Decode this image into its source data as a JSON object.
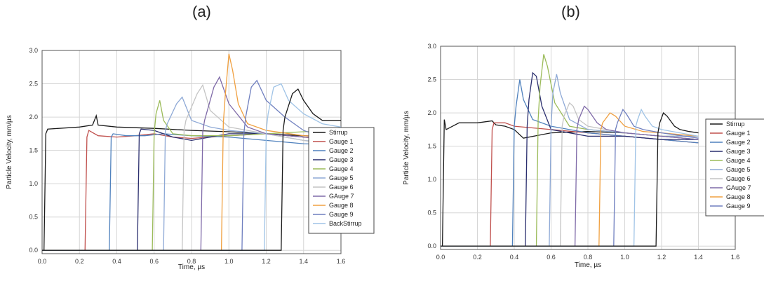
{
  "panels": [
    {
      "label": "(a)"
    },
    {
      "label": "(b)"
    }
  ],
  "colors": {
    "grid": "#d6d6d6",
    "frame": "#555555",
    "series": [
      "#1a1a1a",
      "#c0504d",
      "#4f81bd",
      "#2a2e6e",
      "#9bbb59",
      "#8ea9d6",
      "#c4c4c4",
      "#7f6aa8",
      "#f0a040",
      "#6f7fbf",
      "#9fc3e6"
    ]
  },
  "chart_data": [
    {
      "type": "line",
      "title": "",
      "xlabel": "Time, µs",
      "ylabel": "Particle Velocity, mm/µs",
      "xlim": [
        0.0,
        1.6
      ],
      "ylim": [
        -0.05,
        3.0
      ],
      "xticks": [
        "0.0",
        "0.2",
        "0.4",
        "0.6",
        "0.8",
        "1.0",
        "1.2",
        "1.4",
        "1.6"
      ],
      "yticks": [
        "0.0",
        "0.5",
        "1.0",
        "1.5",
        "2.0",
        "2.5",
        "3.0"
      ],
      "grid": true,
      "legend_position": "right",
      "series": [
        {
          "name": "Stirrup",
          "x": [
            0,
            0.01,
            0.02,
            0.03,
            0.2,
            0.27,
            0.29,
            0.3,
            0.4,
            0.6,
            0.8,
            1.0,
            1.2,
            1.4,
            1.6
          ],
          "y": [
            0.0,
            0.0,
            1.75,
            1.82,
            1.85,
            1.88,
            2.02,
            1.88,
            1.85,
            1.83,
            1.8,
            1.78,
            1.75,
            1.72,
            1.7
          ]
        },
        {
          "name": "Gauge 1",
          "x": [
            0,
            0.23,
            0.24,
            0.25,
            0.3,
            0.4,
            0.5,
            0.6,
            0.7,
            0.8,
            1.0,
            1.2,
            1.4,
            1.6
          ],
          "y": [
            0.0,
            0.0,
            1.7,
            1.8,
            1.72,
            1.7,
            1.72,
            1.75,
            1.7,
            1.68,
            1.72,
            1.75,
            1.7,
            1.65
          ]
        },
        {
          "name": "Gauge 2",
          "x": [
            0,
            0.36,
            0.37,
            0.38,
            0.45,
            0.55,
            0.65,
            0.8,
            1.0,
            1.2,
            1.4,
            1.6
          ],
          "y": [
            0.0,
            0.0,
            1.7,
            1.75,
            1.72,
            1.72,
            1.75,
            1.72,
            1.7,
            1.65,
            1.6,
            1.58
          ]
        },
        {
          "name": "Gauge 3",
          "x": [
            0,
            0.51,
            0.52,
            0.53,
            0.6,
            0.7,
            0.8,
            0.9,
            1.0,
            1.2,
            1.4,
            1.6
          ],
          "y": [
            0.0,
            0.0,
            1.75,
            1.82,
            1.8,
            1.7,
            1.65,
            1.7,
            1.75,
            1.75,
            1.7,
            1.7
          ]
        },
        {
          "name": "Gauge 4",
          "x": [
            0,
            0.59,
            0.6,
            0.61,
            0.63,
            0.65,
            0.7,
            0.8,
            1.0,
            1.2,
            1.4,
            1.6
          ],
          "y": [
            0.0,
            0.0,
            1.75,
            2.05,
            2.25,
            1.95,
            1.75,
            1.72,
            1.72,
            1.75,
            1.78,
            1.8
          ]
        },
        {
          "name": "Gauge 5",
          "x": [
            0,
            0.65,
            0.66,
            0.67,
            0.72,
            0.75,
            0.8,
            0.9,
            1.0,
            1.2,
            1.4,
            1.6
          ],
          "y": [
            0.0,
            0.0,
            1.8,
            1.9,
            2.2,
            2.3,
            1.95,
            1.85,
            1.8,
            1.75,
            1.65,
            1.6
          ]
        },
        {
          "name": "Gauge 6",
          "x": [
            0,
            0.75,
            0.76,
            0.77,
            0.83,
            0.86,
            0.9,
            1.0,
            1.2,
            1.4,
            1.6
          ],
          "y": [
            0.0,
            0.0,
            1.8,
            1.95,
            2.35,
            2.48,
            2.1,
            1.85,
            1.75,
            1.65,
            1.55
          ]
        },
        {
          "name": "GAuge 7",
          "x": [
            0,
            0.85,
            0.86,
            0.87,
            0.92,
            0.95,
            1.0,
            1.1,
            1.2,
            1.4,
            1.6
          ],
          "y": [
            0.0,
            0.0,
            1.78,
            1.95,
            2.45,
            2.6,
            2.2,
            1.85,
            1.75,
            1.7,
            1.7
          ]
        },
        {
          "name": "Gauge 8",
          "x": [
            0,
            0.96,
            0.97,
            0.98,
            1.0,
            1.02,
            1.05,
            1.1,
            1.2,
            1.4,
            1.6
          ],
          "y": [
            0.0,
            0.0,
            1.9,
            2.3,
            2.95,
            2.7,
            2.2,
            1.9,
            1.8,
            1.72,
            1.7
          ]
        },
        {
          "name": "Gauge 9",
          "x": [
            0,
            1.07,
            1.08,
            1.09,
            1.12,
            1.15,
            1.2,
            1.3,
            1.4,
            1.5,
            1.6
          ],
          "y": [
            0.0,
            0.0,
            1.75,
            2.0,
            2.45,
            2.55,
            2.25,
            2.0,
            1.8,
            1.7,
            1.65
          ]
        },
        {
          "name": "BackStirrup",
          "x": [
            0,
            1.19,
            1.2,
            1.21,
            1.24,
            1.28,
            1.32,
            1.4,
            1.5,
            1.6
          ],
          "y": [
            0.0,
            0.0,
            1.8,
            2.05,
            2.45,
            2.5,
            2.25,
            2.05,
            1.9,
            1.85
          ]
        },
        {
          "name": "",
          "x": [
            0,
            1.28,
            1.29,
            1.3,
            1.34,
            1.37,
            1.4,
            1.45,
            1.5,
            1.6
          ],
          "y": [
            0.0,
            0.0,
            1.8,
            2.0,
            2.35,
            2.42,
            2.25,
            2.05,
            1.95,
            1.95
          ]
        }
      ]
    },
    {
      "type": "line",
      "title": "",
      "xlabel": "Time, µs",
      "ylabel": "Particle Velocity, mm/µs",
      "xlim": [
        0.0,
        1.6
      ],
      "ylim": [
        -0.05,
        3.0
      ],
      "xticks": [
        "0.0",
        "0.2",
        "0.4",
        "0.6",
        "0.8",
        "1.0",
        "1.2",
        "1.4",
        "1.6"
      ],
      "yticks": [
        "0.0",
        "0.5",
        "1.0",
        "1.5",
        "2.0",
        "2.5",
        "3.0"
      ],
      "grid": true,
      "legend_position": "right",
      "series": [
        {
          "name": "Stirrup",
          "x": [
            0,
            0.01,
            0.02,
            0.03,
            0.1,
            0.2,
            0.28,
            0.3,
            0.35,
            0.4,
            0.45,
            0.6,
            0.8,
            1.0,
            1.2,
            1.4
          ],
          "y": [
            0.0,
            0.0,
            1.9,
            1.75,
            1.85,
            1.85,
            1.88,
            1.82,
            1.8,
            1.75,
            1.62,
            1.7,
            1.72,
            1.7,
            1.65,
            1.6
          ]
        },
        {
          "name": "Gauge 1",
          "x": [
            0,
            0.27,
            0.28,
            0.29,
            0.35,
            0.4,
            0.6,
            0.8,
            1.0,
            1.2,
            1.4
          ],
          "y": [
            0.0,
            0.0,
            1.75,
            1.85,
            1.85,
            1.8,
            1.75,
            1.7,
            1.65,
            1.6,
            1.55
          ]
        },
        {
          "name": "Gauge 2",
          "x": [
            0,
            0.39,
            0.4,
            0.41,
            0.43,
            0.45,
            0.5,
            0.6,
            0.8,
            1.0,
            1.2,
            1.4
          ],
          "y": [
            0.0,
            0.0,
            1.8,
            2.1,
            2.5,
            2.2,
            1.9,
            1.8,
            1.7,
            1.65,
            1.6,
            1.55
          ]
        },
        {
          "name": "Gauge 3",
          "x": [
            0,
            0.46,
            0.47,
            0.48,
            0.5,
            0.52,
            0.55,
            0.6,
            0.8,
            1.0,
            1.2,
            1.4
          ],
          "y": [
            0.0,
            0.0,
            1.8,
            2.2,
            2.6,
            2.55,
            2.1,
            1.75,
            1.65,
            1.65,
            1.6,
            1.6
          ]
        },
        {
          "name": "Gauge 4",
          "x": [
            0,
            0.52,
            0.53,
            0.54,
            0.56,
            0.58,
            0.62,
            0.7,
            0.8,
            1.0,
            1.2,
            1.4
          ],
          "y": [
            0.0,
            0.0,
            1.9,
            2.4,
            2.88,
            2.7,
            2.15,
            1.8,
            1.75,
            1.7,
            1.65,
            1.65
          ]
        },
        {
          "name": "Gauge 5",
          "x": [
            0,
            0.59,
            0.6,
            0.61,
            0.63,
            0.65,
            0.7,
            0.8,
            1.0,
            1.2,
            1.4
          ],
          "y": [
            0.0,
            0.0,
            1.8,
            2.3,
            2.58,
            2.3,
            1.9,
            1.75,
            1.7,
            1.65,
            1.65
          ]
        },
        {
          "name": "Gauge 6",
          "x": [
            0,
            0.65,
            0.66,
            0.67,
            0.7,
            0.72,
            0.75,
            0.8,
            1.0,
            1.2,
            1.4
          ],
          "y": [
            0.0,
            0.0,
            1.8,
            1.95,
            2.15,
            2.1,
            1.9,
            1.8,
            1.7,
            1.65,
            1.6
          ]
        },
        {
          "name": "GAuge 7",
          "x": [
            0,
            0.73,
            0.74,
            0.75,
            0.78,
            0.8,
            0.85,
            0.9,
            1.0,
            1.2,
            1.4
          ],
          "y": [
            0.0,
            0.0,
            1.75,
            1.9,
            2.1,
            2.05,
            1.85,
            1.75,
            1.7,
            1.65,
            1.6
          ]
        },
        {
          "name": "Gauge 8",
          "x": [
            0,
            0.86,
            0.87,
            0.88,
            0.92,
            0.95,
            1.0,
            1.1,
            1.2,
            1.4
          ],
          "y": [
            0.0,
            0.0,
            1.75,
            1.85,
            2.0,
            1.95,
            1.8,
            1.72,
            1.7,
            1.65
          ]
        },
        {
          "name": "Gauge 9",
          "x": [
            0,
            0.94,
            0.95,
            0.96,
            0.99,
            1.01,
            1.05,
            1.1,
            1.2,
            1.4
          ],
          "y": [
            0.0,
            0.0,
            1.75,
            1.85,
            2.05,
            1.98,
            1.8,
            1.75,
            1.7,
            1.62
          ]
        },
        {
          "name": "",
          "x": [
            0,
            1.05,
            1.06,
            1.07,
            1.09,
            1.11,
            1.15,
            1.2,
            1.3,
            1.4
          ],
          "y": [
            0.0,
            0.0,
            1.8,
            1.9,
            2.05,
            1.95,
            1.8,
            1.75,
            1.7,
            1.65
          ]
        },
        {
          "name": "",
          "x": [
            0,
            1.17,
            1.18,
            1.19,
            1.21,
            1.23,
            1.27,
            1.3,
            1.35,
            1.4
          ],
          "y": [
            0.0,
            0.0,
            1.7,
            1.85,
            2.0,
            1.95,
            1.8,
            1.75,
            1.72,
            1.7
          ]
        }
      ]
    }
  ]
}
